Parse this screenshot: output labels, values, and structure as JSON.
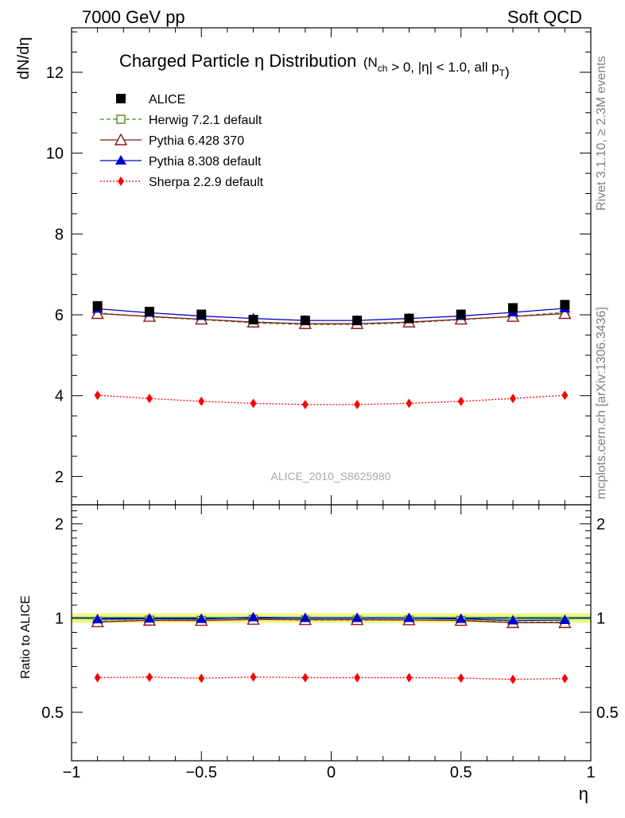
{
  "header": {
    "left": "7000 GeV pp",
    "right": "Soft QCD"
  },
  "side_labels": {
    "top": "Rivet 3.1.10, ≥ 2.3M events",
    "bottom": "mcplots.cern.ch [arXiv:1306.3436]"
  },
  "watermark": "ALICE_2010_S8625980",
  "colors": {
    "alice": "#000000",
    "herwig": "#4a8c1c",
    "pythia6": "#8b1a1a",
    "pythia8": "#0000cc",
    "sherpa": "#ff0000",
    "band_inner": "#a8f0a0",
    "band_outer": "#f5f57a"
  },
  "chart_data": [
    {
      "type": "line",
      "title": "Charged Particle η Distribution",
      "title_suffix": "(N_ch > 0, |η| < 1.0, all p_T)",
      "xlabel": "",
      "ylabel": "dN/dη",
      "xlim": [
        -1.0,
        1.0
      ],
      "ylim": [
        1.3,
        13.1
      ],
      "yticks": [
        2,
        4,
        6,
        8,
        10,
        12
      ],
      "ytick_labels": [
        "2",
        "4",
        "6",
        "8",
        "10",
        "12"
      ],
      "legend_placement": "top-left",
      "x": [
        -0.9,
        -0.7,
        -0.5,
        -0.3,
        -0.1,
        0.1,
        0.3,
        0.5,
        0.7,
        0.9
      ],
      "series": [
        {
          "name": "ALICE",
          "key": "alice",
          "marker": "square",
          "line": "none",
          "values": [
            6.22,
            6.08,
            6.01,
            5.88,
            5.86,
            5.86,
            5.91,
            6.01,
            6.17,
            6.25
          ]
        },
        {
          "name": "Herwig 7.2.1 default",
          "key": "herwig",
          "marker": "open-square",
          "line": "dashed",
          "values": [
            6.05,
            5.95,
            5.88,
            5.8,
            5.76,
            5.76,
            5.8,
            5.88,
            5.96,
            6.06
          ]
        },
        {
          "name": "Pythia 6.428 370",
          "key": "pythia6",
          "marker": "open-triangle",
          "line": "solid",
          "values": [
            6.03,
            5.96,
            5.89,
            5.82,
            5.78,
            5.78,
            5.82,
            5.89,
            5.96,
            6.03
          ]
        },
        {
          "name": "Pythia 8.308 default",
          "key": "pythia8",
          "marker": "triangle",
          "line": "solid",
          "values": [
            6.15,
            6.05,
            5.97,
            5.91,
            5.86,
            5.86,
            5.91,
            5.97,
            6.06,
            6.16
          ]
        },
        {
          "name": "Sherpa 2.2.9 default",
          "key": "sherpa",
          "marker": "diamond",
          "line": "dotted",
          "values": [
            4.01,
            3.93,
            3.86,
            3.81,
            3.78,
            3.78,
            3.81,
            3.86,
            3.93,
            4.01
          ]
        }
      ]
    },
    {
      "type": "line",
      "title": "",
      "xlabel": "η",
      "ylabel": "Ratio to ALICE",
      "xlim": [
        -1.0,
        1.0
      ],
      "ylim": [
        0.35,
        2.3
      ],
      "yscale": "log",
      "xticks": [
        -1,
        -0.5,
        0,
        0.5,
        1
      ],
      "xtick_labels": [
        "−1",
        "−0.5",
        "0",
        "0.5",
        "1"
      ],
      "yticks": [
        0.5,
        1,
        2
      ],
      "ytick_labels": [
        "0.5",
        "1",
        "2"
      ],
      "reference_band": {
        "inner": [
          0.985,
          1.015
        ],
        "outer": [
          0.965,
          1.035
        ]
      },
      "x": [
        -0.9,
        -0.7,
        -0.5,
        -0.3,
        -0.1,
        0.1,
        0.3,
        0.5,
        0.7,
        0.9
      ],
      "series": [
        {
          "name": "Herwig 7.2.1 default",
          "key": "herwig",
          "marker": "open-square",
          "line": "dashed",
          "values": [
            0.975,
            0.985,
            0.983,
            0.99,
            0.985,
            0.985,
            0.985,
            0.983,
            0.97,
            0.97
          ]
        },
        {
          "name": "Pythia 6.428 370",
          "key": "pythia6",
          "marker": "open-triangle",
          "line": "solid",
          "values": [
            0.972,
            0.983,
            0.982,
            0.99,
            0.988,
            0.988,
            0.986,
            0.982,
            0.966,
            0.966
          ]
        },
        {
          "name": "Pythia 8.308 default",
          "key": "pythia8",
          "marker": "triangle",
          "line": "solid",
          "values": [
            0.99,
            0.995,
            0.993,
            1.005,
            1.0,
            1.0,
            1.0,
            0.993,
            0.982,
            0.985
          ]
        },
        {
          "name": "Sherpa 2.2.9 default",
          "key": "sherpa",
          "marker": "diamond",
          "line": "dotted",
          "values": [
            0.645,
            0.647,
            0.642,
            0.648,
            0.645,
            0.645,
            0.645,
            0.643,
            0.637,
            0.641
          ]
        }
      ]
    }
  ]
}
